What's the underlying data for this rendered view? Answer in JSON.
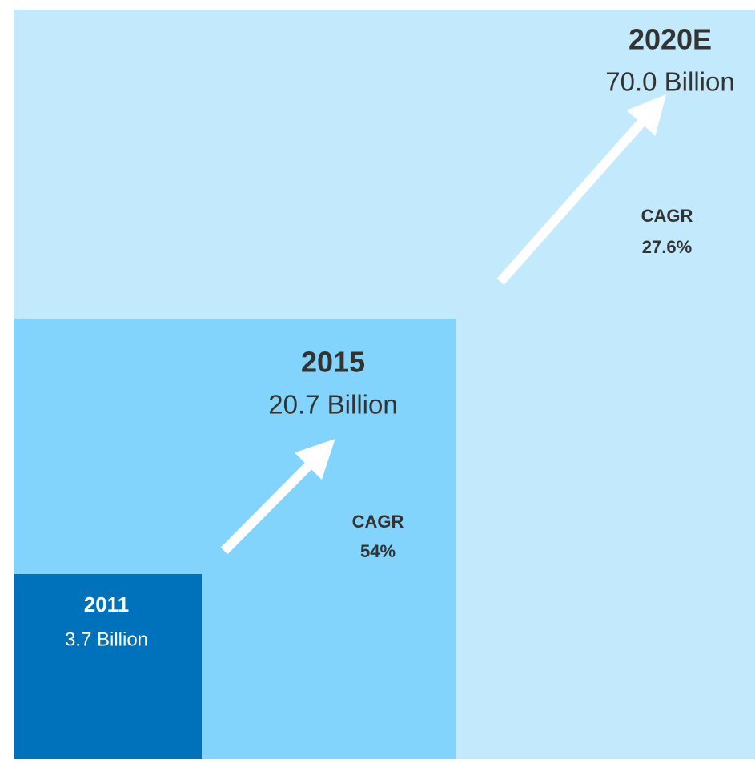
{
  "blocks": [
    {
      "year": "2011",
      "value": "3.7 Billion"
    },
    {
      "year": "2015",
      "value": "20.7 Billion"
    },
    {
      "year": "2020E",
      "value": "70.0 Billion"
    }
  ],
  "growth": [
    {
      "label": "CAGR",
      "rate": "54%"
    },
    {
      "label": "CAGR",
      "rate": "27.6%"
    }
  ]
}
